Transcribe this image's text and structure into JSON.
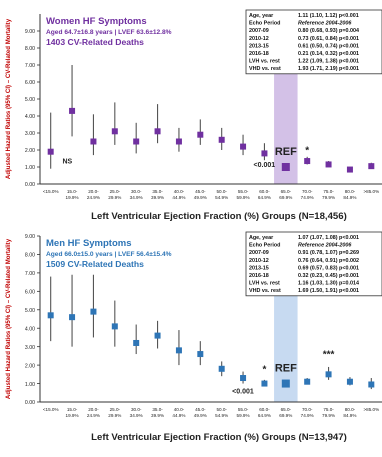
{
  "chart_data": [
    {
      "type": "scatter",
      "title": "Women HF Symptoms",
      "subtitle": "Aged 64.7±16.8 years | LVEF 63.6±12.8%",
      "deaths": "1403 CV-Related Deaths",
      "title_color": "#7030a0",
      "marker_color": "#7030a0",
      "highlight_color": "#cbb6e3",
      "ylabel": "Adjusted Hazard Ratios (95% CI) – CV-Related Mortality",
      "xlabel": "Left Ventricular Ejection Fraction (%) Groups (N=18,456)",
      "ylim": [
        0,
        10
      ],
      "yticks": [
        "0.00",
        "1.00",
        "2.00",
        "3.00",
        "4.00",
        "5.00",
        "6.00",
        "7.00",
        "8.00",
        "9.00"
      ],
      "categories": [
        [
          "<15.0%",
          ""
        ],
        [
          "15.0-",
          "19.9%"
        ],
        [
          "20.0-",
          "24.9%"
        ],
        [
          "25.0-",
          "29.9%"
        ],
        [
          "30.0-",
          "34.9%"
        ],
        [
          "35.0-",
          "39.9%"
        ],
        [
          "40.0-",
          "44.9%"
        ],
        [
          "45.0-",
          "49.9%"
        ],
        [
          "50.0-",
          "54.9%"
        ],
        [
          "55.0-",
          "59.9%"
        ],
        [
          "60.0-",
          "64.9%"
        ],
        [
          "65.0-",
          "69.9%"
        ],
        [
          "70.0-",
          "74.9%"
        ],
        [
          "75.0-",
          "79.9%"
        ],
        [
          "80.0-",
          "84.9%"
        ],
        [
          ">85.0%",
          ""
        ]
      ],
      "values": [
        1.9,
        4.3,
        2.5,
        3.1,
        2.5,
        3.1,
        2.5,
        2.9,
        2.6,
        2.2,
        1.8,
        1.0,
        1.35,
        1.15,
        0.85,
        1.05
      ],
      "lower": [
        0.9,
        2.8,
        1.7,
        2.3,
        1.8,
        2.4,
        1.9,
        2.3,
        2.0,
        1.7,
        1.4,
        1.0,
        1.15,
        1.0,
        0.7,
        0.9
      ],
      "upper": [
        4.2,
        7.0,
        4.1,
        4.8,
        3.6,
        4.7,
        3.3,
        3.8,
        3.3,
        2.9,
        2.4,
        1.0,
        1.6,
        1.35,
        1.0,
        1.25
      ],
      "reference_index": 11,
      "ref_label": "REF",
      "annotations": [
        {
          "index": 0,
          "text": "NS",
          "y": 1.2
        },
        {
          "index": 10,
          "text": "<0.001",
          "y": 1.0
        },
        {
          "index": 12,
          "text": "*",
          "y": 1.8
        }
      ],
      "table": [
        [
          "Age, year",
          "1.11 (1.10, 1.12) p<0.001"
        ],
        [
          "Echo Period",
          "Reference 2004-2006"
        ],
        [
          "2007-09",
          "0.80 (0.68, 0.93) p=0.004"
        ],
        [
          "2010-12",
          "0.73 (0.61, 0.84) p<0.001"
        ],
        [
          "2013-15",
          "0.61 (0.50, 0.74) p<0.001"
        ],
        [
          "2016-18",
          "0.21 (0.14, 0.32) p<0.001"
        ],
        [
          "LVH vs. rest",
          "1.22 (1.09, 1.38) p<0.001"
        ],
        [
          "VHD vs. rest",
          "1.93 (1.71, 2.19) p<0.001"
        ]
      ]
    },
    {
      "type": "scatter",
      "title": "Men HF Symptoms",
      "subtitle": "Aged 66.0±15.0 years | LVEF 56.4±15.4%",
      "deaths": "1509 CV-Related Deaths",
      "title_color": "#2e75b6",
      "marker_color": "#2e75b6",
      "highlight_color": "#bdd3ef",
      "ylabel": "Adjusted Hazard Ratios (95% CI) – CV-Related Mortality",
      "xlabel": "Left Ventricular Ejection Fraction (%) Groups (N=13,947)",
      "ylim": [
        0,
        9
      ],
      "yticks": [
        "0.00",
        "1.00",
        "2.00",
        "3.00",
        "4.00",
        "5.00",
        "6.00",
        "7.00",
        "8.00",
        "9.00"
      ],
      "categories": [
        [
          "<15.0%",
          ""
        ],
        [
          "15.0-",
          "19.9%"
        ],
        [
          "20.0-",
          "24.9%"
        ],
        [
          "25.0-",
          "29.9%"
        ],
        [
          "30.0-",
          "34.9%"
        ],
        [
          "35.0-",
          "39.9%"
        ],
        [
          "40.0-",
          "44.9%"
        ],
        [
          "45.0-",
          "49.9%"
        ],
        [
          "50.0-",
          "54.9%"
        ],
        [
          "55.0-",
          "59.9%"
        ],
        [
          "60.0-",
          "64.9%"
        ],
        [
          "65.0-",
          "69.9%"
        ],
        [
          "70.0-",
          "74.9%"
        ],
        [
          "75.0-",
          "79.9%"
        ],
        [
          "80.0-",
          "84.9%"
        ],
        [
          ">85.0%",
          ""
        ]
      ],
      "values": [
        4.7,
        4.6,
        4.9,
        4.1,
        3.2,
        3.6,
        2.8,
        2.6,
        1.8,
        1.3,
        1.0,
        1.0,
        1.1,
        1.5,
        1.1,
        0.95
      ],
      "lower": [
        3.3,
        3.0,
        3.5,
        3.0,
        2.6,
        2.9,
        2.0,
        2.0,
        1.4,
        1.0,
        0.85,
        1.0,
        0.95,
        1.2,
        0.9,
        0.7
      ],
      "upper": [
        6.8,
        6.9,
        6.9,
        5.5,
        4.2,
        4.4,
        3.9,
        3.3,
        2.2,
        1.65,
        1.2,
        1.0,
        1.3,
        1.9,
        1.35,
        1.3
      ],
      "reference_index": 11,
      "ref_label": "REF",
      "annotations": [
        {
          "index": 9,
          "text": "<0.001",
          "y": 0.45
        },
        {
          "index": 10,
          "text": "*",
          "y": 1.6
        },
        {
          "index": 13,
          "text": "***",
          "y": 2.4
        }
      ],
      "table": [
        [
          "Age, year",
          "1.07 (1.07, 1.08) p<0.001"
        ],
        [
          "Echo Period",
          "Reference 2004-2006"
        ],
        [
          "2007-09",
          "0.91 (0.78, 1.07) p=0.269"
        ],
        [
          "2010-12",
          "0.76 (0.64, 0.91) p=0.002"
        ],
        [
          "2013-15",
          "0.69 (0.57, 0.83) p<0.001"
        ],
        [
          "2016-18",
          "0.32 (0.23, 0.45) p<0.001"
        ],
        [
          "LVH vs. rest",
          "1.16 (1.03, 1.30) p=0.014"
        ],
        [
          "VHD vs. rest",
          "1.69 (1.50, 1.91) p<0.001"
        ]
      ]
    }
  ]
}
